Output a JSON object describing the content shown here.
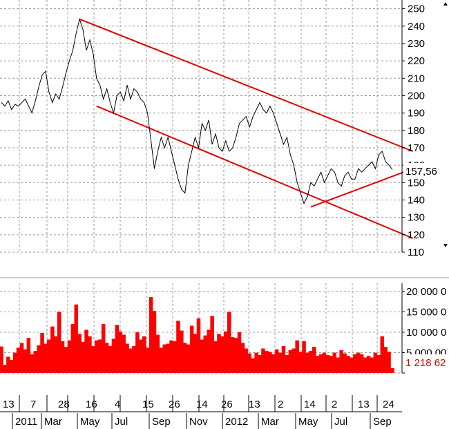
{
  "chart_data": [
    {
      "type": "line",
      "title": "",
      "xlabel": "",
      "ylabel": "",
      "ylim": [
        110,
        255
      ],
      "y_ticks": [
        110,
        120,
        130,
        140,
        150,
        160,
        170,
        180,
        190,
        200,
        210,
        220,
        230,
        240,
        250
      ],
      "last_value_label": "157,56",
      "grid": true,
      "line_color": "#000000",
      "series": [
        {
          "values": [
            196,
            194,
            197,
            192,
            195,
            194,
            196,
            198,
            194,
            190,
            197,
            205,
            212,
            214,
            202,
            196,
            201,
            198,
            205,
            213,
            220,
            226,
            236,
            244,
            238,
            226,
            232,
            224,
            210,
            206,
            198,
            204,
            196,
            190,
            200,
            202,
            197,
            206,
            198,
            204,
            202,
            198,
            196,
            190,
            174,
            158,
            168,
            176,
            170,
            176,
            168,
            160,
            152,
            146,
            144,
            160,
            168,
            176,
            170,
            184,
            180,
            186,
            172,
            178,
            170,
            168,
            174,
            168,
            170,
            176,
            184,
            186,
            188,
            182,
            188,
            192,
            196,
            192,
            190,
            194,
            190,
            184,
            178,
            172,
            176,
            166,
            160,
            150,
            144,
            138,
            142,
            150,
            148,
            152,
            156,
            150,
            154,
            158,
            156,
            150,
            148,
            154,
            156,
            152,
            152,
            158,
            156,
            158,
            160,
            162,
            158,
            166,
            168,
            162,
            160,
            157.56
          ]
        }
      ],
      "trend_lines": {
        "color": "#e00000",
        "upper": {
          "from": {
            "index": 23,
            "value": 244
          },
          "to": {
            "index": 119,
            "value": 168
          }
        },
        "lower": {
          "from": {
            "index": 28,
            "value": 194
          },
          "to": {
            "index": 119,
            "value": 118
          }
        },
        "support": {
          "from": {
            "index": 91,
            "value": 136
          },
          "to": {
            "index": 119,
            "value": 158
          }
        }
      }
    },
    {
      "type": "bar",
      "title": "",
      "xlabel": "",
      "ylabel": "",
      "ylim": [
        0,
        22000
      ],
      "y_ticks": [
        0,
        5000,
        10000,
        15000,
        20000
      ],
      "y_tick_labels": [
        "",
        "5 000 00",
        "10 000 0",
        "15 000 0",
        "20 000 0"
      ],
      "last_value_label": "1 218 62",
      "bar_color": "#ff0000",
      "series": [
        {
          "values": [
            6500,
            2000,
            4000,
            3200,
            5000,
            6200,
            7400,
            5800,
            8600,
            4600,
            5400,
            6800,
            9800,
            7200,
            8200,
            11400,
            9000,
            15000,
            7800,
            6400,
            8000,
            12000,
            16800,
            9600,
            7600,
            10600,
            9000,
            6600,
            8000,
            8200,
            12000,
            7400,
            6600,
            8400,
            11800,
            10200,
            9400,
            7200,
            6000,
            6600,
            10000,
            8200,
            9000,
            6200,
            18600,
            15200,
            9400,
            6200,
            7000,
            7200,
            8000,
            7800,
            12800,
            10400,
            7400,
            7000,
            11600,
            9600,
            13400,
            8200,
            9200,
            10600,
            14000,
            7800,
            9600,
            9000,
            10200,
            15000,
            8800,
            8600,
            10000,
            7400,
            6000,
            4800,
            3600,
            5000,
            4400,
            6000,
            5400,
            5200,
            4600,
            5800,
            5000,
            6600,
            4400,
            5600,
            6000,
            8000,
            5200,
            7800,
            5000,
            5400,
            6400,
            4200,
            4600,
            5000,
            4400,
            4200,
            5000,
            3800,
            5600,
            4800,
            4200,
            3800,
            4600,
            5000,
            4600,
            3800,
            4200,
            3800,
            5000,
            4400,
            9000,
            6400,
            5200,
            1218.62
          ]
        }
      ]
    }
  ],
  "x_axis": {
    "day_labels": [
      "13",
      "7",
      "28",
      "16",
      "4",
      "15",
      "26",
      "14",
      "26",
      "13",
      "2",
      "14",
      "2",
      "13",
      "24"
    ],
    "month_labels": [
      "2011",
      "Mar",
      "May",
      "Jul",
      "Sep",
      "Nov",
      "2012",
      "Mar",
      "May",
      "Jul",
      "Sep"
    ]
  }
}
